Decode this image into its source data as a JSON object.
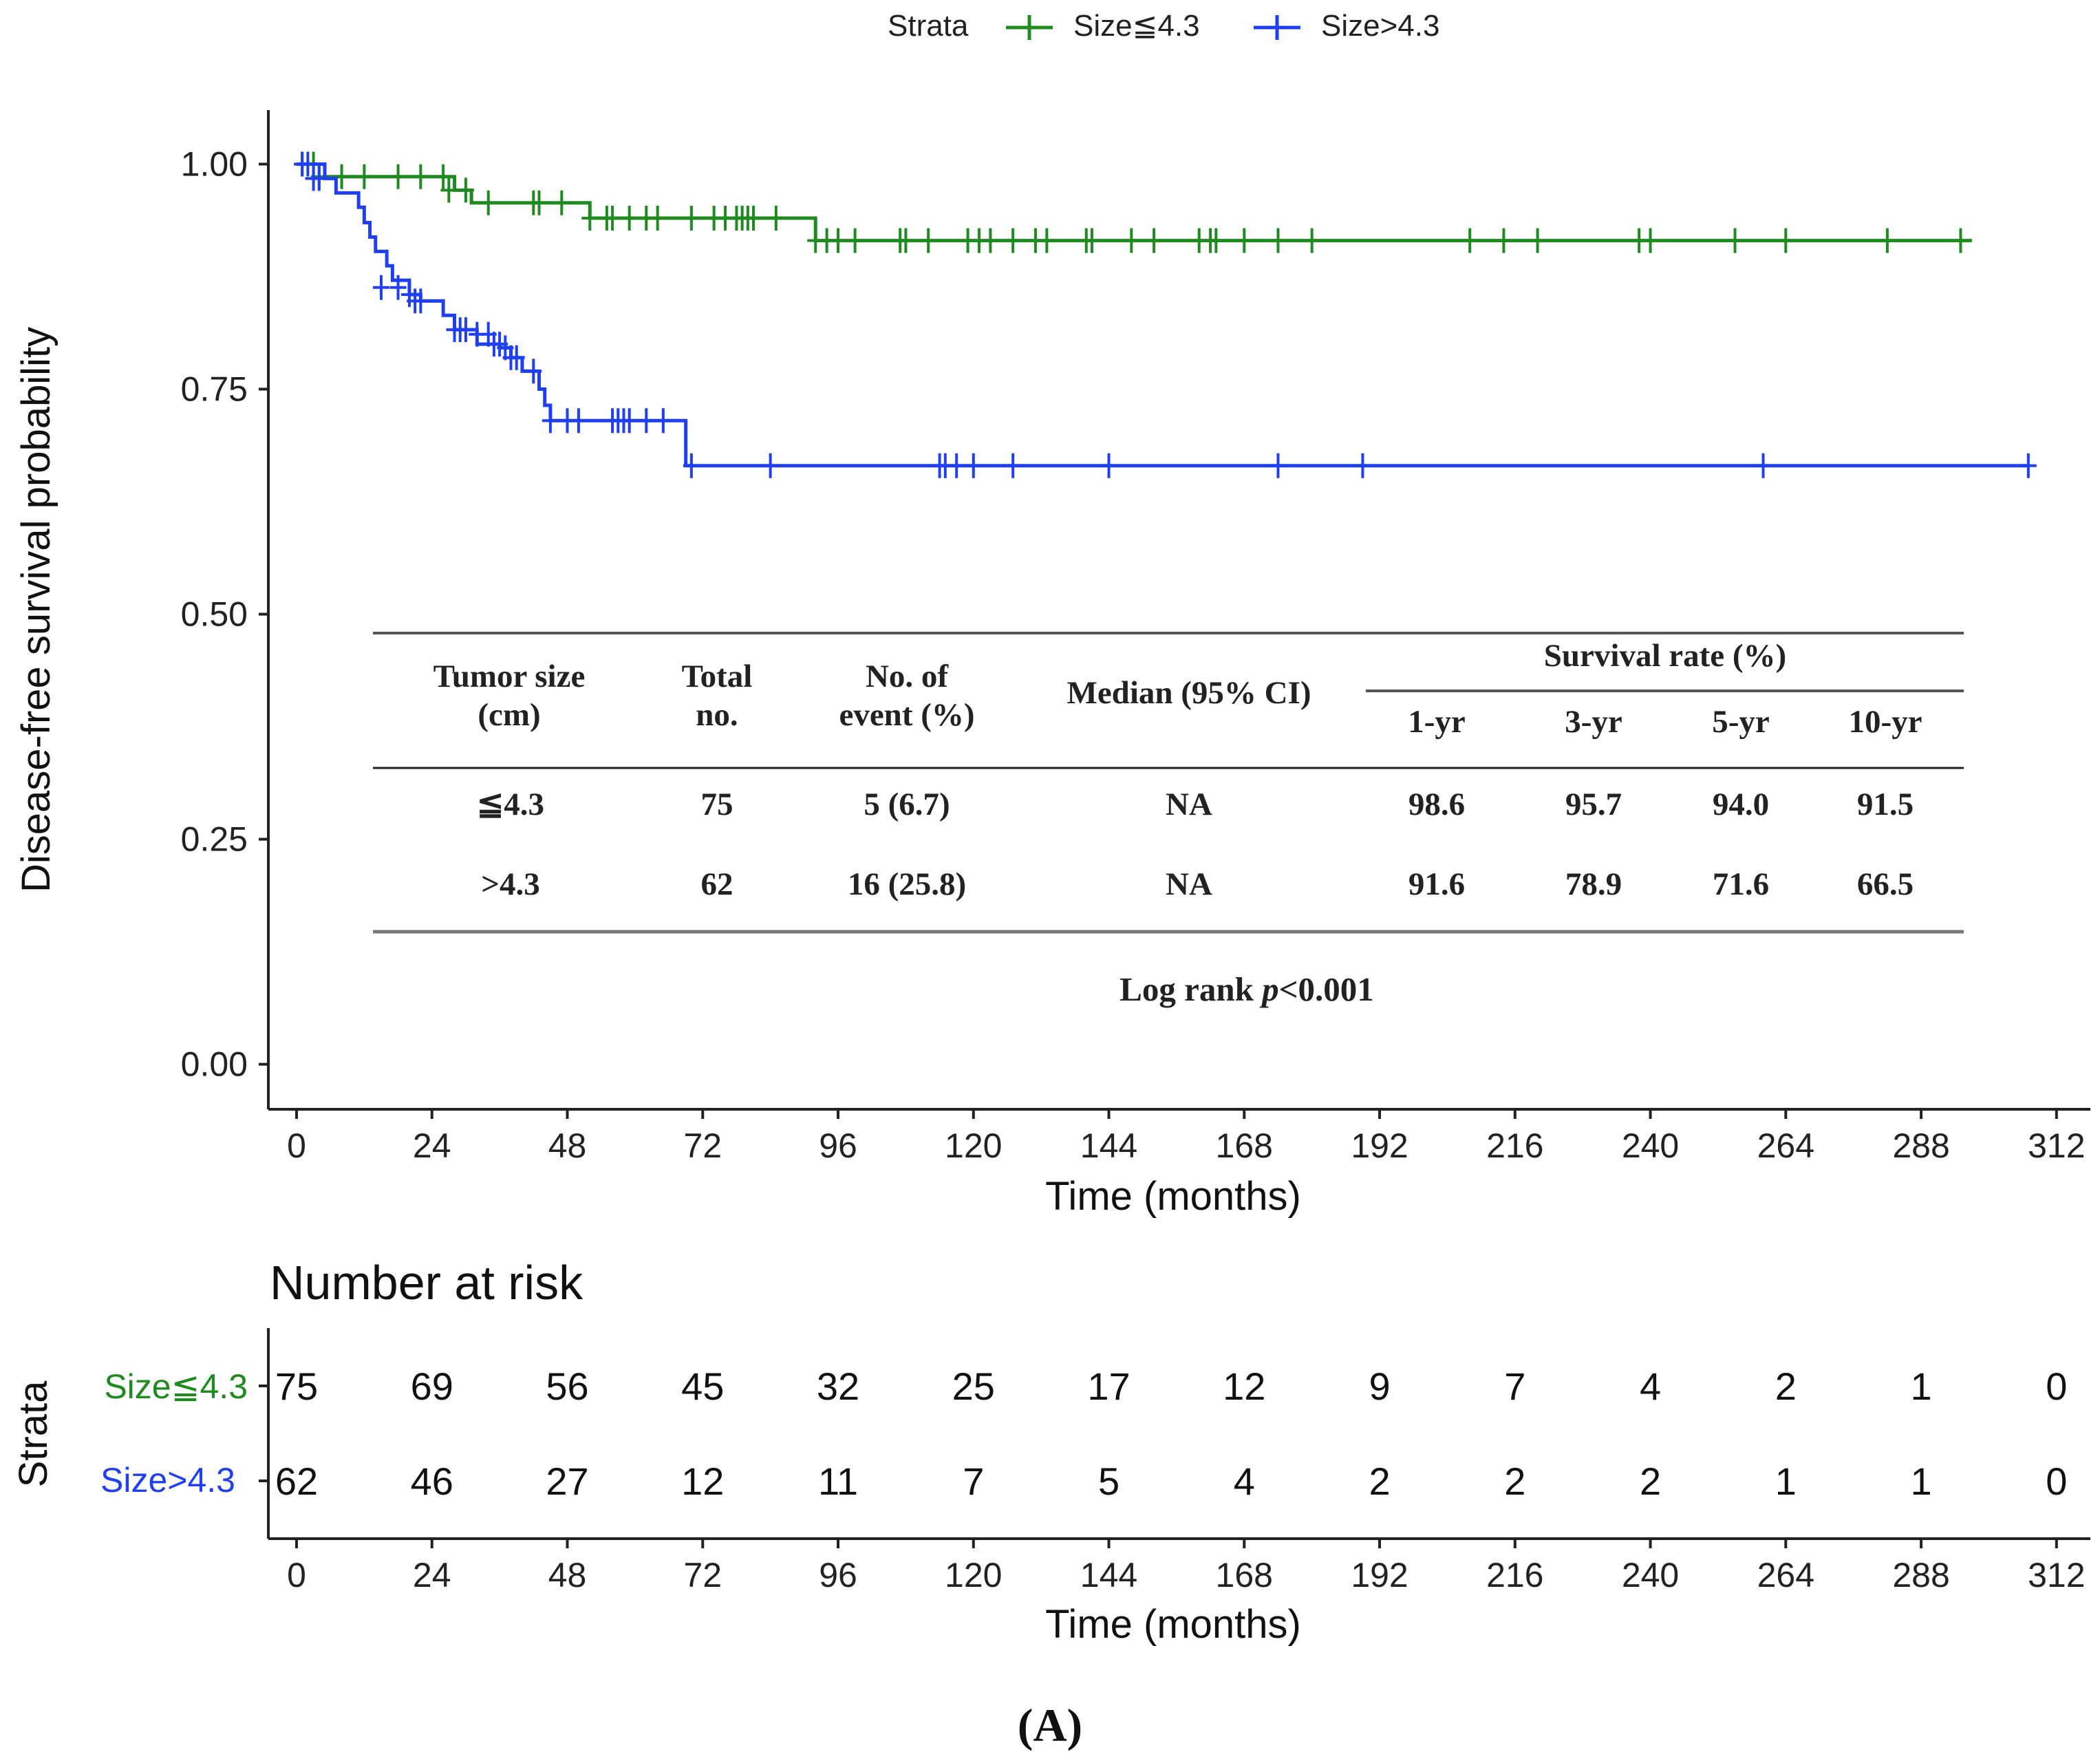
{
  "figure_label": "(A)",
  "legend": {
    "title": "Strata",
    "entries": [
      {
        "label": "Size≦4.3",
        "color": "#1f8a1f"
      },
      {
        "label": "Size>4.3",
        "color": "#1f3ff0"
      }
    ]
  },
  "chart_data": {
    "type": "line",
    "title": "",
    "xlabel": "Time (months)",
    "ylabel": "Disease-free survival probability",
    "xlim": [
      -5,
      318
    ],
    "ylim": [
      -0.05,
      1.06
    ],
    "xticks": [
      "0",
      "24",
      "48",
      "72",
      "96",
      "120",
      "144",
      "168",
      "192",
      "216",
      "240",
      "264",
      "288",
      "312"
    ],
    "yticks": [
      "0.00",
      "0.25",
      "0.50",
      "0.75",
      "1.00"
    ],
    "grid": false,
    "legend_position": "top",
    "series": [
      {
        "name": "Size≦4.3",
        "color": "#1f8a1f",
        "steps": [
          [
            0,
            1.0
          ],
          [
            5,
            0.986
          ],
          [
            28,
            0.971
          ],
          [
            31,
            0.957
          ],
          [
            52,
            0.94
          ],
          [
            92,
            0.915
          ],
          [
            297,
            0.915
          ]
        ],
        "censored": [
          [
            1,
            1.0
          ],
          [
            3,
            1.0
          ],
          [
            4,
            0.986
          ],
          [
            8,
            0.986
          ],
          [
            12,
            0.986
          ],
          [
            18,
            0.986
          ],
          [
            22,
            0.986
          ],
          [
            26,
            0.986
          ],
          [
            27,
            0.971
          ],
          [
            30,
            0.971
          ],
          [
            34,
            0.957
          ],
          [
            42,
            0.957
          ],
          [
            43,
            0.957
          ],
          [
            47,
            0.957
          ],
          [
            52,
            0.94
          ],
          [
            55,
            0.94
          ],
          [
            56,
            0.94
          ],
          [
            59,
            0.94
          ],
          [
            62,
            0.94
          ],
          [
            64,
            0.94
          ],
          [
            70,
            0.94
          ],
          [
            74,
            0.94
          ],
          [
            76,
            0.94
          ],
          [
            78,
            0.94
          ],
          [
            79,
            0.94
          ],
          [
            80,
            0.94
          ],
          [
            81,
            0.94
          ],
          [
            85,
            0.94
          ],
          [
            92,
            0.915
          ],
          [
            94,
            0.915
          ],
          [
            96,
            0.915
          ],
          [
            99,
            0.915
          ],
          [
            107,
            0.915
          ],
          [
            108,
            0.915
          ],
          [
            112,
            0.915
          ],
          [
            119,
            0.915
          ],
          [
            121,
            0.915
          ],
          [
            123,
            0.915
          ],
          [
            127,
            0.915
          ],
          [
            131,
            0.915
          ],
          [
            133,
            0.915
          ],
          [
            140,
            0.915
          ],
          [
            141,
            0.915
          ],
          [
            148,
            0.915
          ],
          [
            152,
            0.915
          ],
          [
            160,
            0.915
          ],
          [
            162,
            0.915
          ],
          [
            163,
            0.915
          ],
          [
            168,
            0.915
          ],
          [
            174,
            0.915
          ],
          [
            180,
            0.915
          ],
          [
            208,
            0.915
          ],
          [
            214,
            0.915
          ],
          [
            220,
            0.915
          ],
          [
            238,
            0.915
          ],
          [
            240,
            0.915
          ],
          [
            255,
            0.915
          ],
          [
            264,
            0.915
          ],
          [
            282,
            0.915
          ],
          [
            295,
            0.915
          ]
        ]
      },
      {
        "name": "Size>4.3",
        "color": "#1f3ff0",
        "steps": [
          [
            0,
            1.0
          ],
          [
            5,
            0.984
          ],
          [
            7,
            0.968
          ],
          [
            11,
            0.952
          ],
          [
            12,
            0.935
          ],
          [
            13,
            0.919
          ],
          [
            14,
            0.903
          ],
          [
            16,
            0.887
          ],
          [
            17,
            0.871
          ],
          [
            20,
            0.855
          ],
          [
            22,
            0.848
          ],
          [
            26,
            0.832
          ],
          [
            28,
            0.816
          ],
          [
            32,
            0.8
          ],
          [
            36,
            0.796
          ],
          [
            38,
            0.785
          ],
          [
            40,
            0.77
          ],
          [
            43,
            0.75
          ],
          [
            44,
            0.732
          ],
          [
            45,
            0.715
          ],
          [
            69,
            0.665
          ],
          [
            307,
            0.665
          ]
        ],
        "censored": [
          [
            1,
            1.0
          ],
          [
            2,
            1.0
          ],
          [
            3,
            0.984
          ],
          [
            4,
            0.984
          ],
          [
            15,
            0.863
          ],
          [
            18,
            0.863
          ],
          [
            20,
            0.855
          ],
          [
            21,
            0.848
          ],
          [
            22,
            0.848
          ],
          [
            28,
            0.816
          ],
          [
            29,
            0.816
          ],
          [
            30,
            0.816
          ],
          [
            32,
            0.811
          ],
          [
            34,
            0.811
          ],
          [
            35,
            0.8
          ],
          [
            36,
            0.8
          ],
          [
            37,
            0.796
          ],
          [
            38,
            0.785
          ],
          [
            39,
            0.785
          ],
          [
            42,
            0.77
          ],
          [
            45,
            0.715
          ],
          [
            48,
            0.715
          ],
          [
            50,
            0.715
          ],
          [
            56,
            0.715
          ],
          [
            57,
            0.715
          ],
          [
            58,
            0.715
          ],
          [
            59,
            0.715
          ],
          [
            62,
            0.715
          ],
          [
            65,
            0.715
          ],
          [
            70,
            0.665
          ],
          [
            84,
            0.665
          ],
          [
            114,
            0.665
          ],
          [
            115,
            0.665
          ],
          [
            117,
            0.665
          ],
          [
            120,
            0.665
          ],
          [
            127,
            0.665
          ],
          [
            144,
            0.665
          ],
          [
            174,
            0.665
          ],
          [
            189,
            0.665
          ],
          [
            260,
            0.665
          ],
          [
            307,
            0.665
          ]
        ]
      }
    ]
  },
  "summary_table": {
    "headers": {
      "tumor_size": [
        "Tumor size",
        "(cm)"
      ],
      "total": [
        "Total",
        "no."
      ],
      "events": [
        "No. of",
        "event (%)"
      ],
      "median": "Median (95% CI)",
      "survival_rate": "Survival rate (%)",
      "years": [
        "1-yr",
        "3-yr",
        "5-yr",
        "10-yr"
      ]
    },
    "rows": [
      {
        "size": "≦4.3",
        "total": "75",
        "events": "5 (6.7)",
        "median": "NA",
        "rates": [
          "98.6",
          "95.7",
          "94.0",
          "91.5"
        ]
      },
      {
        "size": ">4.3",
        "total": "62",
        "events": "16 (25.8)",
        "median": "NA",
        "rates": [
          "91.6",
          "78.9",
          "71.6",
          "66.5"
        ]
      }
    ],
    "log_rank_prefix": "Log rank ",
    "log_rank_p": "p",
    "log_rank_value": "<0.001"
  },
  "risk_table": {
    "title": "Number at risk",
    "ylabel": "Strata",
    "xlabel": "Time (months)",
    "xticks": [
      "0",
      "24",
      "48",
      "72",
      "96",
      "120",
      "144",
      "168",
      "192",
      "216",
      "240",
      "264",
      "288",
      "312"
    ],
    "rows": [
      {
        "label": "Size≦4.3",
        "color": "#1f8a1f",
        "values": [
          "75",
          "69",
          "56",
          "45",
          "32",
          "25",
          "17",
          "12",
          "9",
          "7",
          "4",
          "2",
          "1",
          "0"
        ]
      },
      {
        "label": "Size>4.3",
        "color": "#1f3ff0",
        "values": [
          "62",
          "46",
          "27",
          "12",
          "11",
          "7",
          "5",
          "4",
          "2",
          "2",
          "2",
          "1",
          "1",
          "0"
        ]
      }
    ]
  }
}
